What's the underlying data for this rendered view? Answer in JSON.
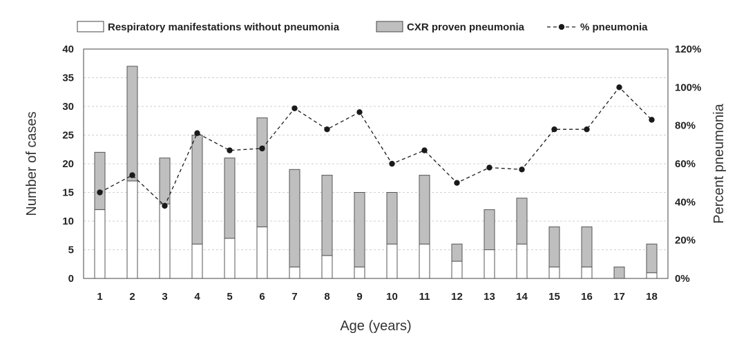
{
  "chart_data": {
    "type": "bar",
    "stacked": true,
    "categories": [
      "1",
      "2",
      "3",
      "4",
      "5",
      "6",
      "7",
      "8",
      "9",
      "10",
      "11",
      "12",
      "13",
      "14",
      "15",
      "16",
      "17",
      "18"
    ],
    "series": [
      {
        "name": "Respiratory manifestations without pneumonia",
        "type": "bar",
        "axis": "left",
        "color": "#ffffff",
        "values": [
          12,
          17,
          13,
          6,
          7,
          9,
          2,
          4,
          2,
          6,
          6,
          3,
          5,
          6,
          2,
          2,
          0,
          1
        ]
      },
      {
        "name": "CXR proven pneumonia",
        "type": "bar",
        "axis": "left",
        "color": "#bfbfbf",
        "values": [
          10,
          20,
          8,
          19,
          14,
          19,
          17,
          14,
          13,
          9,
          12,
          3,
          7,
          8,
          7,
          7,
          2,
          5
        ]
      },
      {
        "name": "% pneumonia",
        "type": "line",
        "axis": "right",
        "style": "dashed",
        "marker": "circle",
        "color": "#1a1a1a",
        "values": [
          45,
          54,
          38,
          76,
          67,
          68,
          89,
          78,
          87,
          60,
          67,
          50,
          58,
          57,
          78,
          78,
          100,
          83
        ]
      }
    ],
    "xlabel": "Age (years)",
    "ylabel": "Number of cases",
    "ylabel_right": "Percent pneumonia",
    "ylim": [
      0,
      40
    ],
    "yticks": [
      0,
      5,
      10,
      15,
      20,
      25,
      30,
      35,
      40
    ],
    "ylim_right": [
      0,
      120
    ],
    "yticks_right": [
      "0%",
      "20%",
      "40%",
      "60%",
      "80%",
      "100%",
      "120%"
    ],
    "grid": "horizontal-dashed",
    "legend_position": "top"
  }
}
